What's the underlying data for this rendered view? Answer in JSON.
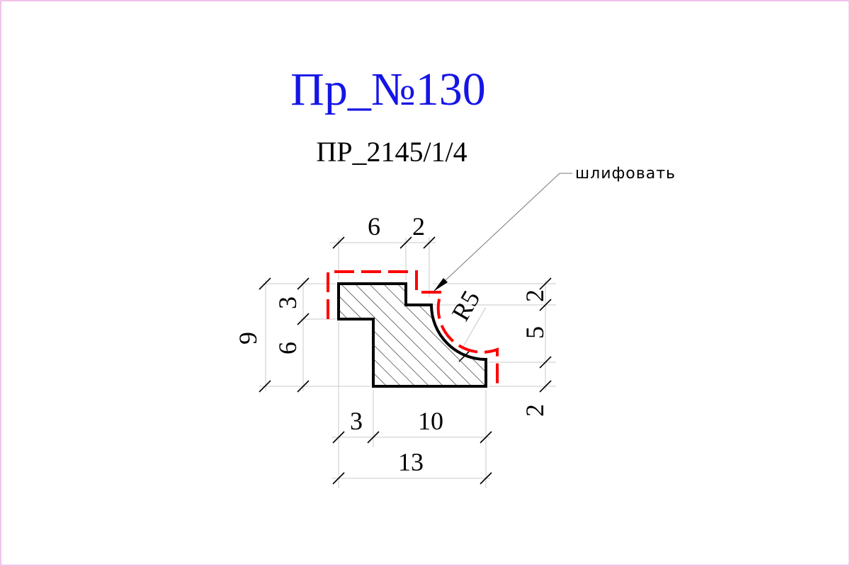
{
  "title": "Пр_№130",
  "profile_code": "ПР_2145/1/4",
  "note": "шлифовать",
  "colors": {
    "title": "#1515e6",
    "sanding_line": "#ff0000",
    "profile_outline": "#000000",
    "frame": "#e08ad6"
  },
  "dimensions": {
    "top_left_width": "6",
    "top_right_step": "2",
    "left_upper_height": "3",
    "left_lower_height": "6",
    "total_height": "9",
    "right_top": "2",
    "right_middle": "5",
    "right_bottom": "2",
    "bottom_left": "3",
    "bottom_right": "10",
    "total_width": "13",
    "radius": "R5"
  }
}
